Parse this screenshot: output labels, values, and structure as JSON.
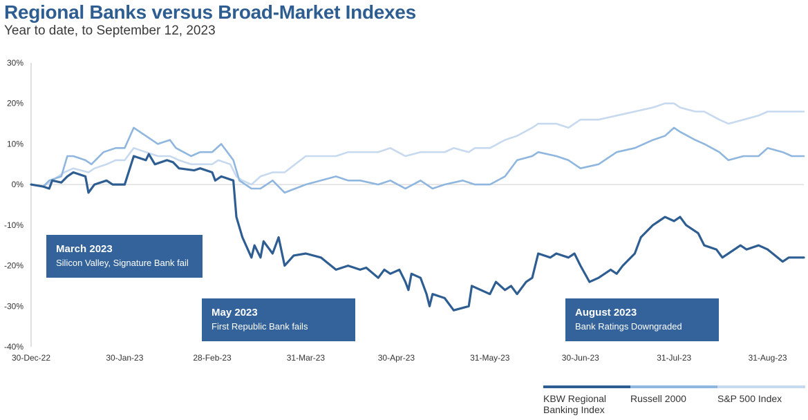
{
  "colors": {
    "kbw": "#2e5d91",
    "russell": "#8fb6de",
    "sp500": "#c7d9ee"
  },
  "chart_data": {
    "type": "line",
    "title": "Regional Banks versus Broad-Market Indexes",
    "subtitle": "Year to date, to September 12, 2023",
    "ylim": [
      -40,
      30
    ],
    "yticks": [
      30,
      20,
      10,
      0,
      -10,
      -20,
      -30,
      -40
    ],
    "ytick_labels": [
      "30%",
      "20%",
      "10%",
      "0%",
      "-10%",
      "-20%",
      "-30%",
      "-40%"
    ],
    "xlim": [
      "2022-12-30",
      "2023-09-12"
    ],
    "xticks": [
      "2022-12-30",
      "2023-01-30",
      "2023-02-28",
      "2023-03-31",
      "2023-04-30",
      "2023-05-31",
      "2023-06-30",
      "2023-07-31",
      "2023-08-31"
    ],
    "xtick_labels": [
      "30-Dec-22",
      "30-Jan-23",
      "28-Feb-23",
      "31-Mar-23",
      "30-Apr-23",
      "31-May-23",
      "30-Jun-23",
      "31-Jul-23",
      "31-Aug-23"
    ],
    "series": [
      {
        "name": "KBW Regional Banking Index",
        "color": "#2e5d91",
        "points": [
          [
            "2022-12-30",
            0
          ],
          [
            "2023-01-03",
            -0.5
          ],
          [
            "2023-01-05",
            -1
          ],
          [
            "2023-01-06",
            1
          ],
          [
            "2023-01-09",
            0.5
          ],
          [
            "2023-01-11",
            2
          ],
          [
            "2023-01-13",
            3
          ],
          [
            "2023-01-17",
            2
          ],
          [
            "2023-01-18",
            -2
          ],
          [
            "2023-01-20",
            0
          ],
          [
            "2023-01-24",
            1
          ],
          [
            "2023-01-26",
            0
          ],
          [
            "2023-01-30",
            0
          ],
          [
            "2023-02-02",
            7
          ],
          [
            "2023-02-06",
            6
          ],
          [
            "2023-02-07",
            7.5
          ],
          [
            "2023-02-09",
            5
          ],
          [
            "2023-02-13",
            6
          ],
          [
            "2023-02-15",
            5.5
          ],
          [
            "2023-02-17",
            4
          ],
          [
            "2023-02-22",
            3.5
          ],
          [
            "2023-02-24",
            4
          ],
          [
            "2023-02-28",
            3
          ],
          [
            "2023-03-01",
            1
          ],
          [
            "2023-03-03",
            2
          ],
          [
            "2023-03-07",
            1
          ],
          [
            "2023-03-08",
            -8
          ],
          [
            "2023-03-10",
            -13
          ],
          [
            "2023-03-13",
            -18
          ],
          [
            "2023-03-14",
            -15
          ],
          [
            "2023-03-16",
            -18
          ],
          [
            "2023-03-17",
            -14
          ],
          [
            "2023-03-20",
            -17
          ],
          [
            "2023-03-22",
            -13
          ],
          [
            "2023-03-24",
            -20
          ],
          [
            "2023-03-27",
            -17.5
          ],
          [
            "2023-03-31",
            -17
          ],
          [
            "2023-04-05",
            -18
          ],
          [
            "2023-04-10",
            -21
          ],
          [
            "2023-04-14",
            -20
          ],
          [
            "2023-04-18",
            -21
          ],
          [
            "2023-04-20",
            -20.5
          ],
          [
            "2023-04-24",
            -23
          ],
          [
            "2023-04-26",
            -21
          ],
          [
            "2023-04-28",
            -22
          ],
          [
            "2023-05-01",
            -21
          ],
          [
            "2023-05-03",
            -24
          ],
          [
            "2023-05-04",
            -26
          ],
          [
            "2023-05-05",
            -22
          ],
          [
            "2023-05-08",
            -23
          ],
          [
            "2023-05-10",
            -27
          ],
          [
            "2023-05-11",
            -30
          ],
          [
            "2023-05-12",
            -27
          ],
          [
            "2023-05-16",
            -28
          ],
          [
            "2023-05-19",
            -31
          ],
          [
            "2023-05-24",
            -30
          ],
          [
            "2023-05-25",
            -25
          ],
          [
            "2023-05-31",
            -27
          ],
          [
            "2023-06-02",
            -24
          ],
          [
            "2023-06-05",
            -26
          ],
          [
            "2023-06-07",
            -25
          ],
          [
            "2023-06-09",
            -27
          ],
          [
            "2023-06-12",
            -24
          ],
          [
            "2023-06-14",
            -23
          ],
          [
            "2023-06-16",
            -17
          ],
          [
            "2023-06-20",
            -18
          ],
          [
            "2023-06-22",
            -17
          ],
          [
            "2023-06-26",
            -18
          ],
          [
            "2023-06-28",
            -17
          ],
          [
            "2023-06-30",
            -20
          ],
          [
            "2023-07-03",
            -24
          ],
          [
            "2023-07-06",
            -23
          ],
          [
            "2023-07-10",
            -21
          ],
          [
            "2023-07-12",
            -22
          ],
          [
            "2023-07-14",
            -20
          ],
          [
            "2023-07-18",
            -17
          ],
          [
            "2023-07-20",
            -13
          ],
          [
            "2023-07-24",
            -10
          ],
          [
            "2023-07-26",
            -9
          ],
          [
            "2023-07-28",
            -8
          ],
          [
            "2023-07-31",
            -9
          ],
          [
            "2023-08-02",
            -8
          ],
          [
            "2023-08-04",
            -10
          ],
          [
            "2023-08-08",
            -12
          ],
          [
            "2023-08-10",
            -15
          ],
          [
            "2023-08-14",
            -16
          ],
          [
            "2023-08-16",
            -18
          ],
          [
            "2023-08-18",
            -17
          ],
          [
            "2023-08-22",
            -15
          ],
          [
            "2023-08-24",
            -16
          ],
          [
            "2023-08-28",
            -15
          ],
          [
            "2023-08-31",
            -16
          ],
          [
            "2023-09-05",
            -19
          ],
          [
            "2023-09-07",
            -18
          ],
          [
            "2023-09-12",
            -18
          ]
        ]
      },
      {
        "name": "Russell 2000",
        "color": "#8fb6de",
        "points": [
          [
            "2022-12-30",
            0
          ],
          [
            "2023-01-03",
            -0.5
          ],
          [
            "2023-01-05",
            1
          ],
          [
            "2023-01-09",
            2
          ],
          [
            "2023-01-11",
            7
          ],
          [
            "2023-01-13",
            7
          ],
          [
            "2023-01-17",
            6
          ],
          [
            "2023-01-19",
            5
          ],
          [
            "2023-01-23",
            8
          ],
          [
            "2023-01-27",
            9
          ],
          [
            "2023-01-30",
            9
          ],
          [
            "2023-02-02",
            14
          ],
          [
            "2023-02-06",
            12
          ],
          [
            "2023-02-08",
            11
          ],
          [
            "2023-02-10",
            10
          ],
          [
            "2023-02-14",
            11
          ],
          [
            "2023-02-16",
            9
          ],
          [
            "2023-02-21",
            7
          ],
          [
            "2023-02-24",
            8
          ],
          [
            "2023-02-28",
            8
          ],
          [
            "2023-03-03",
            10
          ],
          [
            "2023-03-07",
            6
          ],
          [
            "2023-03-09",
            1
          ],
          [
            "2023-03-13",
            -1
          ],
          [
            "2023-03-16",
            -1
          ],
          [
            "2023-03-20",
            1
          ],
          [
            "2023-03-24",
            -2
          ],
          [
            "2023-03-31",
            0
          ],
          [
            "2023-04-05",
            1
          ],
          [
            "2023-04-10",
            2
          ],
          [
            "2023-04-14",
            1
          ],
          [
            "2023-04-18",
            1
          ],
          [
            "2023-04-24",
            0
          ],
          [
            "2023-04-28",
            1
          ],
          [
            "2023-05-03",
            -1
          ],
          [
            "2023-05-08",
            1
          ],
          [
            "2023-05-12",
            -1
          ],
          [
            "2023-05-16",
            0
          ],
          [
            "2023-05-22",
            1
          ],
          [
            "2023-05-26",
            0
          ],
          [
            "2023-05-31",
            0
          ],
          [
            "2023-06-05",
            2
          ],
          [
            "2023-06-09",
            6
          ],
          [
            "2023-06-14",
            7
          ],
          [
            "2023-06-16",
            8
          ],
          [
            "2023-06-22",
            7
          ],
          [
            "2023-06-26",
            6
          ],
          [
            "2023-06-30",
            4
          ],
          [
            "2023-07-06",
            5
          ],
          [
            "2023-07-12",
            8
          ],
          [
            "2023-07-18",
            9
          ],
          [
            "2023-07-24",
            11
          ],
          [
            "2023-07-28",
            12
          ],
          [
            "2023-07-31",
            14
          ],
          [
            "2023-08-02",
            13
          ],
          [
            "2023-08-07",
            11
          ],
          [
            "2023-08-10",
            10
          ],
          [
            "2023-08-15",
            8
          ],
          [
            "2023-08-18",
            6
          ],
          [
            "2023-08-23",
            7
          ],
          [
            "2023-08-28",
            7
          ],
          [
            "2023-08-31",
            9
          ],
          [
            "2023-09-05",
            8
          ],
          [
            "2023-09-08",
            7
          ],
          [
            "2023-09-12",
            7
          ]
        ]
      },
      {
        "name": "S&P 500 Index",
        "color": "#c7d9ee",
        "points": [
          [
            "2022-12-30",
            0
          ],
          [
            "2023-01-03",
            -0.5
          ],
          [
            "2023-01-06",
            1
          ],
          [
            "2023-01-10",
            3
          ],
          [
            "2023-01-13",
            4
          ],
          [
            "2023-01-18",
            3
          ],
          [
            "2023-01-20",
            4
          ],
          [
            "2023-01-24",
            5
          ],
          [
            "2023-01-27",
            6
          ],
          [
            "2023-01-30",
            6
          ],
          [
            "2023-02-02",
            9
          ],
          [
            "2023-02-06",
            8
          ],
          [
            "2023-02-10",
            7
          ],
          [
            "2023-02-14",
            7
          ],
          [
            "2023-02-17",
            6
          ],
          [
            "2023-02-21",
            5
          ],
          [
            "2023-02-24",
            5
          ],
          [
            "2023-02-28",
            5
          ],
          [
            "2023-03-02",
            6
          ],
          [
            "2023-03-06",
            5
          ],
          [
            "2023-03-08",
            2
          ],
          [
            "2023-03-10",
            1
          ],
          [
            "2023-03-13",
            0
          ],
          [
            "2023-03-16",
            2
          ],
          [
            "2023-03-20",
            3
          ],
          [
            "2023-03-24",
            3
          ],
          [
            "2023-03-31",
            7
          ],
          [
            "2023-04-05",
            7
          ],
          [
            "2023-04-10",
            7
          ],
          [
            "2023-04-14",
            8
          ],
          [
            "2023-04-18",
            8
          ],
          [
            "2023-04-24",
            8
          ],
          [
            "2023-04-28",
            9
          ],
          [
            "2023-05-03",
            7
          ],
          [
            "2023-05-08",
            8
          ],
          [
            "2023-05-12",
            8
          ],
          [
            "2023-05-16",
            8
          ],
          [
            "2023-05-19",
            9
          ],
          [
            "2023-05-24",
            8
          ],
          [
            "2023-05-26",
            9
          ],
          [
            "2023-05-31",
            9
          ],
          [
            "2023-06-05",
            11
          ],
          [
            "2023-06-09",
            12
          ],
          [
            "2023-06-14",
            14
          ],
          [
            "2023-06-16",
            15
          ],
          [
            "2023-06-22",
            15
          ],
          [
            "2023-06-26",
            14
          ],
          [
            "2023-06-30",
            16
          ],
          [
            "2023-07-06",
            16
          ],
          [
            "2023-07-12",
            17
          ],
          [
            "2023-07-18",
            18
          ],
          [
            "2023-07-24",
            19
          ],
          [
            "2023-07-28",
            20
          ],
          [
            "2023-07-31",
            20
          ],
          [
            "2023-08-02",
            19
          ],
          [
            "2023-08-07",
            18
          ],
          [
            "2023-08-10",
            18
          ],
          [
            "2023-08-15",
            16
          ],
          [
            "2023-08-18",
            15
          ],
          [
            "2023-08-23",
            16
          ],
          [
            "2023-08-28",
            17
          ],
          [
            "2023-08-31",
            18
          ],
          [
            "2023-09-05",
            18
          ],
          [
            "2023-09-08",
            18
          ],
          [
            "2023-09-12",
            18
          ]
        ]
      }
    ],
    "annotations": [
      {
        "title": "March 2023",
        "text": "Silicon Valley, Signature Bank fail"
      },
      {
        "title": "May 2023",
        "text": "First Republic Bank fails"
      },
      {
        "title": "August 2023",
        "text": "Bank Ratings Downgraded"
      }
    ],
    "legend": {
      "items": [
        "KBW Regional Banking Index",
        "Russell 2000",
        "S&P 500 Index"
      ],
      "position": "bottom-right"
    },
    "grid": false
  },
  "legend_labels": {
    "kbw_line1": "KBW Regional",
    "kbw_line2": "Banking Index",
    "russell": "Russell 2000",
    "sp500": "S&P 500 Index"
  }
}
